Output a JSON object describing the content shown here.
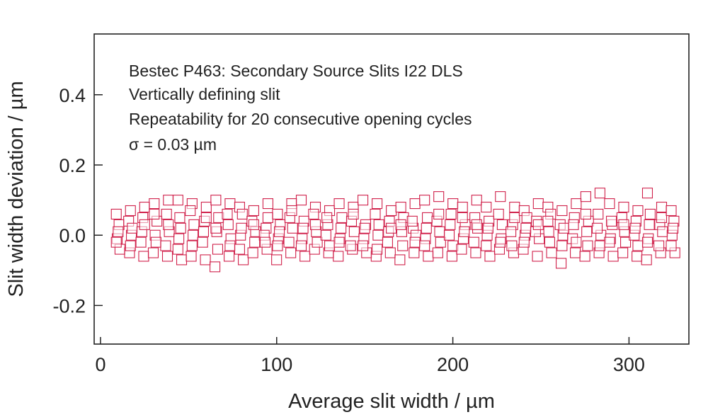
{
  "chart_data": {
    "type": "scatter",
    "title": "",
    "xlabel": "Average slit width / µm",
    "ylabel": "Slit width deviation / µm",
    "xlim": [
      -3.6,
      334
    ],
    "ylim": [
      -0.31,
      0.573
    ],
    "xticks": [
      0,
      100,
      200,
      300
    ],
    "xtick_labels": [
      "0",
      "100",
      "200",
      "300"
    ],
    "yticks": [
      -0.2,
      0.0,
      0.2,
      0.4
    ],
    "ytick_labels": [
      "-0.2",
      "0.0",
      "0.2",
      "0.4"
    ],
    "grid": false,
    "marker": "open-square",
    "color": "#d0204a",
    "annotations": [
      "Bestec P463: Secondary Source Slits I22 DLS",
      "Vertically defining slit",
      "Repeatability for 20 consecutive opening cycles",
      "σ = 0.03 µm"
    ],
    "x": [
      10,
      17,
      24,
      31,
      38,
      45,
      52,
      59,
      66,
      73,
      80,
      87,
      94,
      101,
      108,
      115,
      122,
      129,
      136,
      143,
      150,
      157,
      164,
      171,
      178,
      185,
      192,
      199,
      206,
      213,
      220,
      227,
      234,
      241,
      248,
      255,
      262,
      269,
      276,
      283,
      290,
      297,
      304,
      311,
      318,
      325
    ],
    "y": [
      [
        0.06,
        0.03,
        -0.01,
        -0.04,
        0.01,
        -0.02
      ],
      [
        0.07,
        0.04,
        0.0,
        -0.05,
        0.02,
        -0.03
      ],
      [
        0.08,
        0.05,
        -0.02,
        -0.06,
        0.01,
        0.03
      ],
      [
        0.09,
        0.04,
        0.0,
        -0.05,
        -0.02,
        0.06
      ],
      [
        0.1,
        0.06,
        0.01,
        -0.06,
        -0.03,
        0.03
      ],
      [
        0.1,
        0.02,
        -0.01,
        -0.07,
        0.05,
        -0.04
      ],
      [
        0.09,
        0.07,
        0.0,
        -0.06,
        0.03,
        -0.03
      ],
      [
        0.08,
        0.04,
        -0.02,
        -0.07,
        0.01,
        0.05
      ],
      [
        0.1,
        0.05,
        0.01,
        -0.09,
        -0.04,
        0.02
      ],
      [
        0.09,
        0.03,
        -0.01,
        -0.06,
        0.06,
        -0.03
      ],
      [
        0.08,
        0.06,
        0.0,
        -0.07,
        0.02,
        -0.04
      ],
      [
        0.07,
        0.04,
        -0.02,
        -0.05,
        0.01,
        0.03
      ],
      [
        0.09,
        0.02,
        0.0,
        -0.04,
        -0.02,
        0.05
      ],
      [
        0.06,
        0.03,
        -0.01,
        -0.07,
        0.01,
        -0.03
      ],
      [
        0.09,
        0.05,
        0.02,
        -0.05,
        -0.02,
        0.07
      ],
      [
        0.1,
        0.04,
        -0.01,
        -0.06,
        0.02,
        -0.03
      ],
      [
        0.08,
        0.06,
        0.01,
        -0.04,
        -0.02,
        0.03
      ],
      [
        0.07,
        0.03,
        0.0,
        -0.05,
        0.05,
        -0.03
      ],
      [
        0.09,
        0.05,
        -0.01,
        -0.06,
        0.02,
        -0.02
      ],
      [
        0.08,
        0.04,
        0.01,
        -0.04,
        -0.03,
        0.06
      ],
      [
        0.1,
        0.03,
        -0.01,
        -0.05,
        0.02,
        -0.03
      ],
      [
        0.09,
        0.06,
        0.0,
        -0.06,
        0.03,
        -0.04
      ],
      [
        0.07,
        0.04,
        -0.02,
        -0.05,
        0.01,
        0.02
      ],
      [
        0.08,
        0.05,
        0.01,
        -0.07,
        -0.03,
        0.03
      ],
      [
        0.09,
        0.02,
        0.0,
        -0.05,
        0.04,
        -0.02
      ],
      [
        0.1,
        0.05,
        -0.01,
        -0.06,
        0.02,
        -0.03
      ],
      [
        0.11,
        0.04,
        0.01,
        -0.05,
        -0.02,
        0.06
      ],
      [
        0.09,
        0.06,
        0.0,
        -0.06,
        0.03,
        -0.03
      ],
      [
        0.08,
        0.03,
        -0.01,
        -0.04,
        0.01,
        0.05
      ],
      [
        0.1,
        0.05,
        0.02,
        -0.05,
        -0.02,
        0.03
      ],
      [
        0.08,
        0.04,
        0.0,
        -0.06,
        0.02,
        -0.03
      ],
      [
        0.11,
        0.06,
        -0.01,
        -0.04,
        0.03,
        -0.02
      ],
      [
        0.08,
        0.03,
        0.01,
        -0.05,
        -0.03,
        0.05
      ],
      [
        0.07,
        0.05,
        0.0,
        -0.04,
        0.02,
        -0.02
      ],
      [
        0.09,
        0.04,
        -0.01,
        -0.06,
        0.01,
        0.03
      ],
      [
        0.08,
        0.06,
        0.01,
        -0.05,
        -0.02,
        0.04
      ],
      [
        0.07,
        0.03,
        0.0,
        -0.08,
        0.02,
        -0.03
      ],
      [
        0.09,
        0.05,
        -0.01,
        -0.05,
        0.03,
        -0.02
      ],
      [
        0.11,
        0.04,
        0.01,
        -0.06,
        -0.03,
        0.06
      ],
      [
        0.12,
        0.06,
        0.0,
        -0.05,
        0.02,
        -0.03
      ],
      [
        0.09,
        0.03,
        -0.01,
        -0.06,
        0.04,
        -0.02
      ],
      [
        0.08,
        0.05,
        0.01,
        -0.05,
        -0.02,
        0.03
      ],
      [
        0.07,
        0.04,
        0.0,
        -0.06,
        0.02,
        -0.03
      ],
      [
        0.12,
        0.06,
        -0.01,
        -0.07,
        0.03,
        -0.02
      ],
      [
        0.08,
        0.03,
        0.01,
        -0.05,
        -0.03,
        0.05
      ],
      [
        0.07,
        0.04,
        0.0,
        -0.05,
        0.02,
        -0.03
      ]
    ]
  }
}
